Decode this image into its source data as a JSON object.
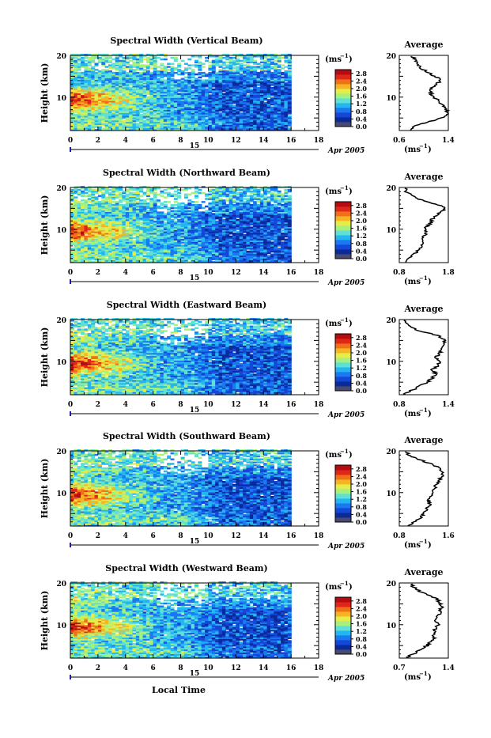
{
  "colors": {
    "colorbar": [
      "#4a4a70",
      "#0a2a9a",
      "#1446d8",
      "#1a78f0",
      "#24b6f0",
      "#5ee0d6",
      "#a6f07e",
      "#e6ec48",
      "#f6b424",
      "#f07018",
      "#e0261a",
      "#b40c10"
    ],
    "axis": "#000000",
    "date_tick": "#1a1aa0"
  },
  "shared_text": {
    "y_label": "Height (km)",
    "cbar_unit_base": "(ms",
    "cbar_unit_exp": "−1",
    "cbar_unit_close": ")",
    "cbar_ticks": [
      "2.8",
      "2.4",
      "2.0",
      "1.6",
      "1.2",
      "0.8",
      "0.4",
      "0.0"
    ],
    "date_day": "15",
    "date_month": "Apr 2005",
    "avg_title": "Average",
    "x_label": "Local Time"
  },
  "chart_data": [
    {
      "type": "heatmap",
      "title": "Spectral Width (Vertical Beam)",
      "ylabel": "Height (km)",
      "xlim": [
        0,
        18
      ],
      "ylim": [
        2,
        20
      ],
      "xticks": [
        "0",
        "2",
        "4",
        "6",
        "8",
        "10",
        "12",
        "14",
        "16",
        "18"
      ],
      "yticks": [
        "20",
        "10"
      ],
      "colorbar": {
        "label": "(ms−1)",
        "ticks": [
          2.8,
          2.4,
          2.0,
          1.6,
          1.2,
          0.8,
          0.4,
          0.0
        ]
      },
      "data_end_hour": 16,
      "average_profile": {
        "title": "Average",
        "xlabel": "(ms−1)",
        "xlim": [
          0.6,
          1.4
        ],
        "xticks": [
          "0.6",
          "1.4"
        ],
        "yticks": [
          "20",
          "10"
        ],
        "height_km": [
          2,
          3,
          4,
          5,
          6,
          7,
          8,
          9,
          10,
          11,
          12,
          13,
          14,
          15,
          16,
          17,
          18,
          19,
          20
        ],
        "width_ms": [
          0.75,
          0.85,
          1.05,
          1.3,
          1.4,
          1.36,
          1.3,
          1.25,
          1.17,
          1.1,
          1.12,
          1.2,
          1.28,
          1.18,
          1.05,
          0.95,
          0.9,
          0.85,
          0.8
        ]
      }
    },
    {
      "type": "heatmap",
      "title": "Spectral Width (Northward Beam)",
      "ylabel": "Height (km)",
      "xlim": [
        0,
        18
      ],
      "ylim": [
        2,
        20
      ],
      "xticks": [
        "0",
        "2",
        "4",
        "6",
        "8",
        "10",
        "12",
        "14",
        "16",
        "18"
      ],
      "yticks": [
        "20",
        "10"
      ],
      "colorbar": {
        "label": "(ms−1)",
        "ticks": [
          2.8,
          2.4,
          2.0,
          1.6,
          1.2,
          0.8,
          0.4,
          0.0
        ]
      },
      "data_end_hour": 16,
      "average_profile": {
        "title": "Average",
        "xlabel": "(ms−1)",
        "xlim": [
          0.8,
          1.8
        ],
        "xticks": [
          "0.8",
          "1.8"
        ],
        "yticks": [
          "20",
          "10"
        ],
        "height_km": [
          2,
          3,
          4,
          5,
          6,
          7,
          8,
          9,
          10,
          11,
          12,
          13,
          14,
          15,
          16,
          17,
          18,
          19,
          20
        ],
        "width_ms": [
          0.9,
          1.0,
          1.1,
          1.2,
          1.25,
          1.3,
          1.28,
          1.35,
          1.3,
          1.4,
          1.45,
          1.5,
          1.65,
          1.75,
          1.55,
          1.25,
          1.05,
          0.95,
          0.9
        ]
      }
    },
    {
      "type": "heatmap",
      "title": "Spectral Width (Eastward Beam)",
      "ylabel": "Height (km)",
      "xlim": [
        0,
        18
      ],
      "ylim": [
        2,
        20
      ],
      "xticks": [
        "0",
        "2",
        "4",
        "6",
        "8",
        "10",
        "12",
        "14",
        "16",
        "18"
      ],
      "yticks": [
        "20",
        "10"
      ],
      "colorbar": {
        "label": "(ms−1)",
        "ticks": [
          2.8,
          2.4,
          2.0,
          1.6,
          1.2,
          0.8,
          0.4,
          0.0
        ]
      },
      "data_end_hour": 16,
      "average_profile": {
        "title": "Average",
        "xlabel": "(ms−1)",
        "xlim": [
          0.8,
          1.4
        ],
        "xticks": [
          "0.8",
          "1.4"
        ],
        "yticks": [
          "20",
          "10"
        ],
        "height_km": [
          2,
          3,
          4,
          5,
          6,
          7,
          8,
          9,
          10,
          11,
          12,
          13,
          14,
          15,
          16,
          17,
          18,
          19,
          20
        ],
        "width_ms": [
          0.85,
          0.95,
          1.05,
          1.15,
          1.2,
          1.25,
          1.2,
          1.28,
          1.3,
          1.25,
          1.3,
          1.32,
          1.35,
          1.35,
          1.3,
          1.1,
          0.95,
          0.9,
          0.85
        ]
      }
    },
    {
      "type": "heatmap",
      "title": "Spectral Width (Southward Beam)",
      "ylabel": "Height (km)",
      "xlim": [
        0,
        18
      ],
      "ylim": [
        2,
        20
      ],
      "xticks": [
        "0",
        "2",
        "4",
        "6",
        "8",
        "10",
        "12",
        "14",
        "16",
        "18"
      ],
      "yticks": [
        "20",
        "10"
      ],
      "colorbar": {
        "label": "(ms−1)",
        "ticks": [
          2.8,
          2.4,
          2.0,
          1.6,
          1.2,
          0.8,
          0.4,
          0.0
        ]
      },
      "data_end_hour": 16,
      "average_profile": {
        "title": "Average",
        "xlabel": "(ms−1)",
        "xlim": [
          0.8,
          1.6
        ],
        "xticks": [
          "0.8",
          "1.6"
        ],
        "yticks": [
          "20",
          "10"
        ],
        "height_km": [
          2,
          3,
          4,
          5,
          6,
          7,
          8,
          9,
          10,
          11,
          12,
          13,
          14,
          15,
          16,
          17,
          18,
          19,
          20
        ],
        "width_ms": [
          0.95,
          1.05,
          1.15,
          1.2,
          1.25,
          1.3,
          1.28,
          1.3,
          1.35,
          1.38,
          1.4,
          1.45,
          1.5,
          1.5,
          1.45,
          1.3,
          1.1,
          0.95,
          0.9
        ]
      }
    },
    {
      "type": "heatmap",
      "title": "Spectral Width (Westward Beam)",
      "ylabel": "Height (km)",
      "xlabel": "Local Time",
      "xlim": [
        0,
        18
      ],
      "ylim": [
        2,
        20
      ],
      "xticks": [
        "0",
        "2",
        "4",
        "6",
        "8",
        "10",
        "12",
        "14",
        "16",
        "18"
      ],
      "yticks": [
        "20",
        "10"
      ],
      "colorbar": {
        "label": "(ms−1)",
        "ticks": [
          2.8,
          2.4,
          2.0,
          1.6,
          1.2,
          0.8,
          0.4,
          0.0
        ]
      },
      "data_end_hour": 16,
      "average_profile": {
        "title": "Average",
        "xlabel": "(ms−1)",
        "xlim": [
          0.7,
          1.4
        ],
        "xticks": [
          "0.7",
          "1.4"
        ],
        "yticks": [
          "20",
          "10"
        ],
        "height_km": [
          2,
          3,
          4,
          5,
          6,
          7,
          8,
          9,
          10,
          11,
          12,
          13,
          14,
          15,
          16,
          17,
          18,
          19,
          20
        ],
        "width_ms": [
          0.8,
          0.9,
          1.0,
          1.1,
          1.15,
          1.2,
          1.18,
          1.22,
          1.25,
          1.2,
          1.25,
          1.28,
          1.3,
          1.3,
          1.25,
          1.15,
          1.0,
          0.9,
          0.85
        ]
      }
    }
  ]
}
